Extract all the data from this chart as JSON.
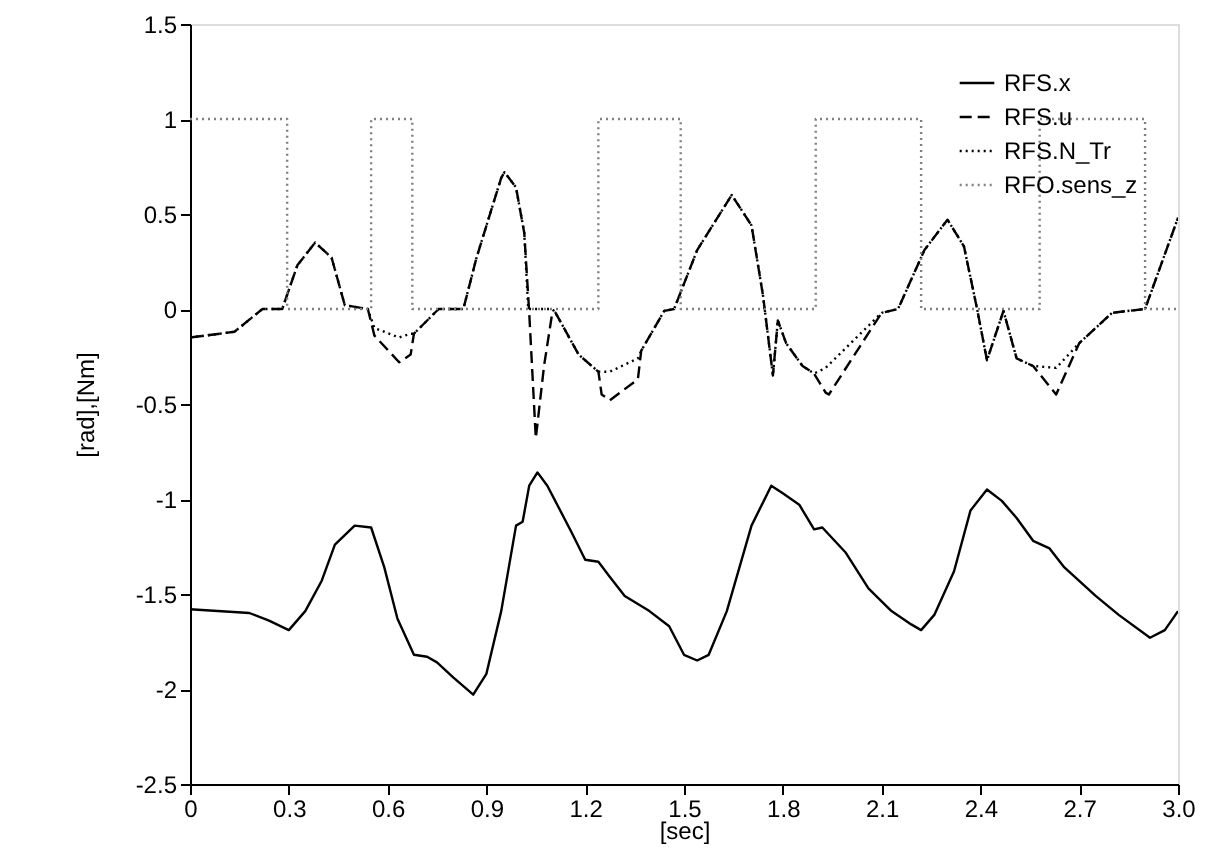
{
  "chart_data": {
    "type": "line",
    "xlabel": "[sec]",
    "ylabel": "[rad],[Nm]",
    "xlim": [
      0,
      3.0
    ],
    "xticks": [
      0,
      0.3,
      0.6,
      0.9,
      1.2,
      1.5,
      1.8,
      2.1,
      2.4,
      2.7,
      {
        "value": 3.0,
        "label": "3.0"
      }
    ],
    "ylim": [
      -2.5,
      1.5
    ],
    "yticks": [
      -2.5,
      -2,
      -1.5,
      -1,
      -0.5,
      0,
      0.5,
      1,
      1.5
    ],
    "grid": false,
    "legend": "top right",
    "series": [
      {
        "name": "RFS.x",
        "color": "#000000",
        "line_style": "solid",
        "x": [
          0,
          0.18,
          0.24,
          0.3,
          0.35,
          0.4,
          0.44,
          0.5,
          0.55,
          0.59,
          0.63,
          0.68,
          0.72,
          0.75,
          0.8,
          0.86,
          0.9,
          0.945,
          0.99,
          1.01,
          1.03,
          1.055,
          1.085,
          1.16,
          1.2,
          1.24,
          1.275,
          1.32,
          1.395,
          1.455,
          1.5,
          1.54,
          1.575,
          1.63,
          1.705,
          1.765,
          1.8,
          1.85,
          1.895,
          1.92,
          1.99,
          2.06,
          2.13,
          2.19,
          2.22,
          2.26,
          2.32,
          2.37,
          2.42,
          2.465,
          2.51,
          2.56,
          2.61,
          2.655,
          2.75,
          2.82,
          2.915,
          2.96,
          3.0
        ],
        "values": [
          -1.58,
          -1.6,
          -1.64,
          -1.69,
          -1.59,
          -1.43,
          -1.24,
          -1.14,
          -1.15,
          -1.36,
          -1.63,
          -1.82,
          -1.83,
          -1.86,
          -1.94,
          -2.03,
          -1.92,
          -1.59,
          -1.14,
          -1.12,
          -0.93,
          -0.86,
          -0.93,
          -1.18,
          -1.32,
          -1.33,
          -1.41,
          -1.51,
          -1.59,
          -1.67,
          -1.82,
          -1.85,
          -1.82,
          -1.59,
          -1.14,
          -0.93,
          -0.97,
          -1.03,
          -1.16,
          -1.15,
          -1.28,
          -1.47,
          -1.59,
          -1.66,
          -1.69,
          -1.61,
          -1.38,
          -1.06,
          -0.95,
          -1.01,
          -1.1,
          -1.22,
          -1.26,
          -1.36,
          -1.51,
          -1.61,
          -1.73,
          -1.69,
          -1.59
        ]
      },
      {
        "name": "RFS.u",
        "color": "#000000",
        "line_style": "dashed",
        "x": [
          0,
          0.135,
          0.22,
          0.28,
          0.326,
          0.38,
          0.43,
          0.47,
          0.54,
          0.56,
          0.635,
          0.67,
          0.68,
          0.755,
          0.83,
          0.87,
          0.945,
          0.955,
          0.99,
          1.015,
          1.03,
          1.05,
          1.075,
          1.1,
          1.11,
          1.18,
          1.24,
          1.25,
          1.275,
          1.36,
          1.37,
          1.44,
          1.47,
          1.54,
          1.645,
          1.705,
          1.74,
          1.77,
          1.785,
          1.81,
          1.86,
          1.895,
          1.93,
          1.94,
          2.1,
          2.15,
          2.23,
          2.3,
          2.35,
          2.39,
          2.42,
          2.47,
          2.51,
          2.56,
          2.63,
          2.7,
          2.8,
          2.9,
          3.0
        ],
        "values": [
          -0.15,
          -0.12,
          0,
          0,
          0.23,
          0.35,
          0.27,
          0.02,
          0,
          -0.14,
          -0.28,
          -0.24,
          -0.13,
          0,
          0,
          0.27,
          0.69,
          0.72,
          0.64,
          0.4,
          -0.02,
          -0.68,
          -0.3,
          -0.02,
          -0.02,
          -0.24,
          -0.33,
          -0.45,
          -0.48,
          -0.37,
          -0.22,
          -0.01,
          0,
          0.31,
          0.6,
          0.44,
          0.07,
          -0.35,
          -0.06,
          -0.18,
          -0.3,
          -0.34,
          -0.44,
          -0.45,
          -0.02,
          0,
          0.31,
          0.47,
          0.33,
          0,
          -0.27,
          -0.01,
          -0.26,
          -0.3,
          -0.45,
          -0.18,
          -0.02,
          0,
          0.48
        ]
      },
      {
        "name": "RFS.N_Tr",
        "color": "#000000",
        "line_style": "dotted",
        "x": [
          0,
          0.135,
          0.22,
          0.28,
          0.326,
          0.38,
          0.43,
          0.47,
          0.54,
          0.56,
          0.635,
          0.67,
          0.68,
          0.755,
          0.83,
          0.87,
          0.945,
          0.955,
          0.99,
          1.015,
          1.027,
          1.1,
          1.11,
          1.18,
          1.24,
          1.275,
          1.36,
          1.37,
          1.44,
          1.47,
          1.54,
          1.645,
          1.705,
          1.74,
          1.77,
          1.785,
          1.81,
          1.86,
          1.895,
          1.93,
          2.1,
          2.15,
          2.23,
          2.3,
          2.35,
          2.39,
          2.42,
          2.47,
          2.51,
          2.56,
          2.63,
          2.7,
          2.8,
          2.9,
          3.0
        ],
        "values": [
          -0.15,
          -0.12,
          0,
          0,
          0.23,
          0.35,
          0.27,
          0.02,
          0,
          -0.1,
          -0.15,
          -0.13,
          -0.13,
          0,
          0,
          0.27,
          0.69,
          0.72,
          0.64,
          0.4,
          0,
          0,
          -0.02,
          -0.24,
          -0.33,
          -0.33,
          -0.26,
          -0.22,
          -0.01,
          0,
          0.31,
          0.6,
          0.44,
          0.07,
          -0.35,
          -0.06,
          -0.18,
          -0.3,
          -0.34,
          -0.31,
          -0.02,
          0,
          0.31,
          0.47,
          0.33,
          0,
          -0.27,
          -0.01,
          -0.26,
          -0.3,
          -0.31,
          -0.18,
          -0.02,
          0,
          0.48
        ]
      },
      {
        "name": "RFO.sens_z",
        "type": "step",
        "color": "#808080",
        "line_style": "dotted",
        "x": [
          0,
          0.295,
          0.55,
          0.675,
          1.24,
          1.49,
          1.9,
          2.22,
          2.58,
          2.9,
          3.0
        ],
        "values": [
          1,
          0,
          1,
          0,
          1,
          0,
          1,
          0,
          1,
          0,
          0
        ]
      }
    ]
  }
}
